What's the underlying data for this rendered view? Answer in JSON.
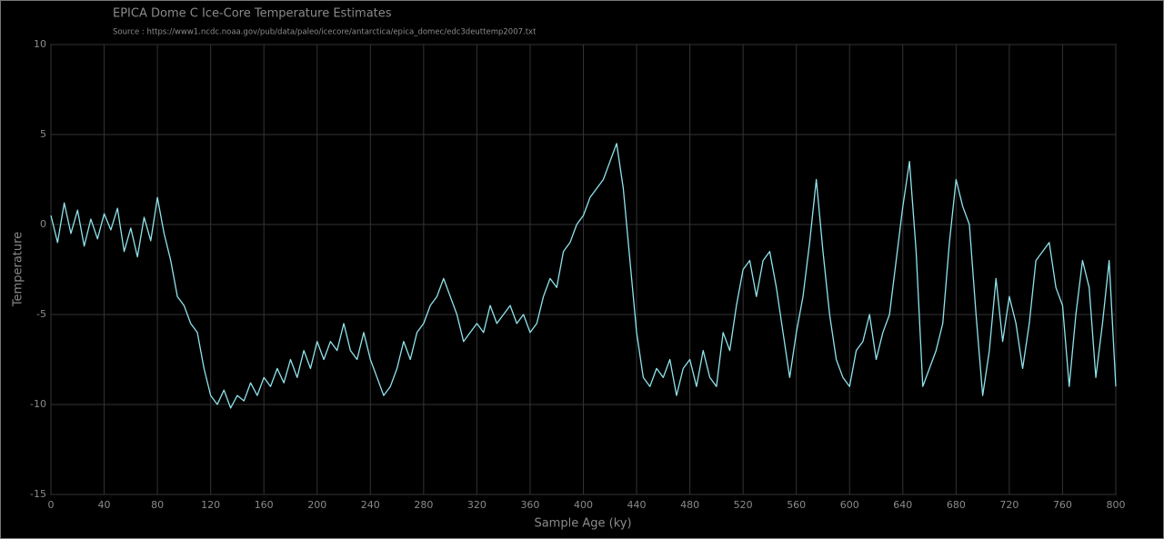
{
  "chart_data": {
    "type": "line",
    "title": "EPICA Dome C Ice-Core Temperature Estimates",
    "subtitle": "Source : https://www1.ncdc.noaa.gov/pub/data/paleo/icecore/antarctica/epica_domec/edc3deuttemp2007.txt",
    "x_label": "Sample Age (ky)",
    "y_label": "Temperature",
    "x": [
      0,
      5,
      10,
      15,
      20,
      25,
      30,
      35,
      40,
      45,
      50,
      55,
      60,
      65,
      70,
      75,
      80,
      85,
      90,
      95,
      100,
      105,
      110,
      115,
      120,
      125,
      130,
      135,
      140,
      145,
      150,
      155,
      160,
      165,
      170,
      175,
      180,
      185,
      190,
      195,
      200,
      205,
      210,
      215,
      220,
      225,
      230,
      235,
      240,
      245,
      250,
      255,
      260,
      265,
      270,
      275,
      280,
      285,
      290,
      295,
      300,
      305,
      310,
      315,
      320,
      325,
      330,
      335,
      340,
      345,
      350,
      355,
      360,
      365,
      370,
      375,
      380,
      385,
      390,
      395,
      400,
      405,
      410,
      415,
      420,
      425,
      430,
      435,
      440,
      445,
      450,
      455,
      460,
      465,
      470,
      475,
      480,
      485,
      490,
      495,
      500,
      505,
      510,
      515,
      520,
      525,
      530,
      535,
      540,
      545,
      550,
      555,
      560,
      565,
      570,
      575,
      580,
      585,
      590,
      595,
      600,
      605,
      610,
      615,
      620,
      625,
      630,
      635,
      640,
      645,
      650,
      655,
      660,
      665,
      670,
      675,
      680,
      685,
      690,
      695,
      700,
      705,
      710,
      715,
      720,
      725,
      730,
      735,
      740,
      745,
      750,
      755,
      760,
      765,
      770,
      775,
      780,
      785,
      790,
      795,
      800
    ],
    "series": [
      {
        "name": "Temperature",
        "color": "#8fe3ec",
        "values": [
          0.5,
          -1.0,
          1.2,
          -0.5,
          0.8,
          -1.2,
          0.3,
          -0.8,
          0.6,
          -0.3,
          0.9,
          -1.5,
          -0.2,
          -1.8,
          0.4,
          -0.9,
          1.5,
          -0.5,
          -2.0,
          -4.0,
          -4.5,
          -5.5,
          -6.0,
          -8.0,
          -9.5,
          -10.0,
          -9.2,
          -10.2,
          -9.5,
          -9.8,
          -8.8,
          -9.5,
          -8.5,
          -9.0,
          -8.0,
          -8.8,
          -7.5,
          -8.5,
          -7.0,
          -8.0,
          -6.5,
          -7.5,
          -6.5,
          -7.0,
          -5.5,
          -7.0,
          -7.5,
          -6.0,
          -7.5,
          -8.5,
          -9.5,
          -9.0,
          -8.0,
          -6.5,
          -7.5,
          -6.0,
          -5.5,
          -4.5,
          -4.0,
          -3.0,
          -4.0,
          -5.0,
          -6.5,
          -6.0,
          -5.5,
          -6.0,
          -4.5,
          -5.5,
          -5.0,
          -4.5,
          -5.5,
          -5.0,
          -6.0,
          -5.5,
          -4.0,
          -3.0,
          -3.5,
          -1.5,
          -1.0,
          0.0,
          0.5,
          1.5,
          2.0,
          2.5,
          3.5,
          4.5,
          2.0,
          -2.0,
          -6.0,
          -8.5,
          -9.0,
          -8.0,
          -8.5,
          -7.5,
          -9.5,
          -8.0,
          -7.5,
          -9.0,
          -7.0,
          -8.5,
          -9.0,
          -6.0,
          -7.0,
          -4.5,
          -2.5,
          -2.0,
          -4.0,
          -2.0,
          -1.5,
          -3.5,
          -6.0,
          -8.5,
          -6.0,
          -4.0,
          -1.0,
          2.5,
          -1.5,
          -5.0,
          -7.5,
          -8.5,
          -9.0,
          -7.0,
          -6.5,
          -5.0,
          -7.5,
          -6.0,
          -5.0,
          -2.0,
          1.0,
          3.5,
          -1.5,
          -9.0,
          -8.0,
          -7.0,
          -5.5,
          -1.0,
          2.5,
          1.0,
          0.0,
          -5.0,
          -9.5,
          -7.0,
          -3.0,
          -6.5,
          -4.0,
          -5.5,
          -8.0,
          -5.5,
          -2.0,
          -1.5,
          -1.0,
          -3.5,
          -4.5,
          -9.0,
          -5.0,
          -2.0,
          -3.5,
          -8.5,
          -5.5,
          -2.0,
          -9.0
        ]
      }
    ],
    "xlim": [
      0,
      800
    ],
    "xticks": [
      0,
      40,
      80,
      120,
      160,
      200,
      240,
      280,
      320,
      360,
      400,
      440,
      480,
      520,
      560,
      600,
      640,
      680,
      720,
      760,
      800
    ],
    "ylim": [
      -15,
      10
    ],
    "yticks": [
      -15,
      -10,
      -5,
      0,
      5,
      10
    ],
    "grid": true
  }
}
